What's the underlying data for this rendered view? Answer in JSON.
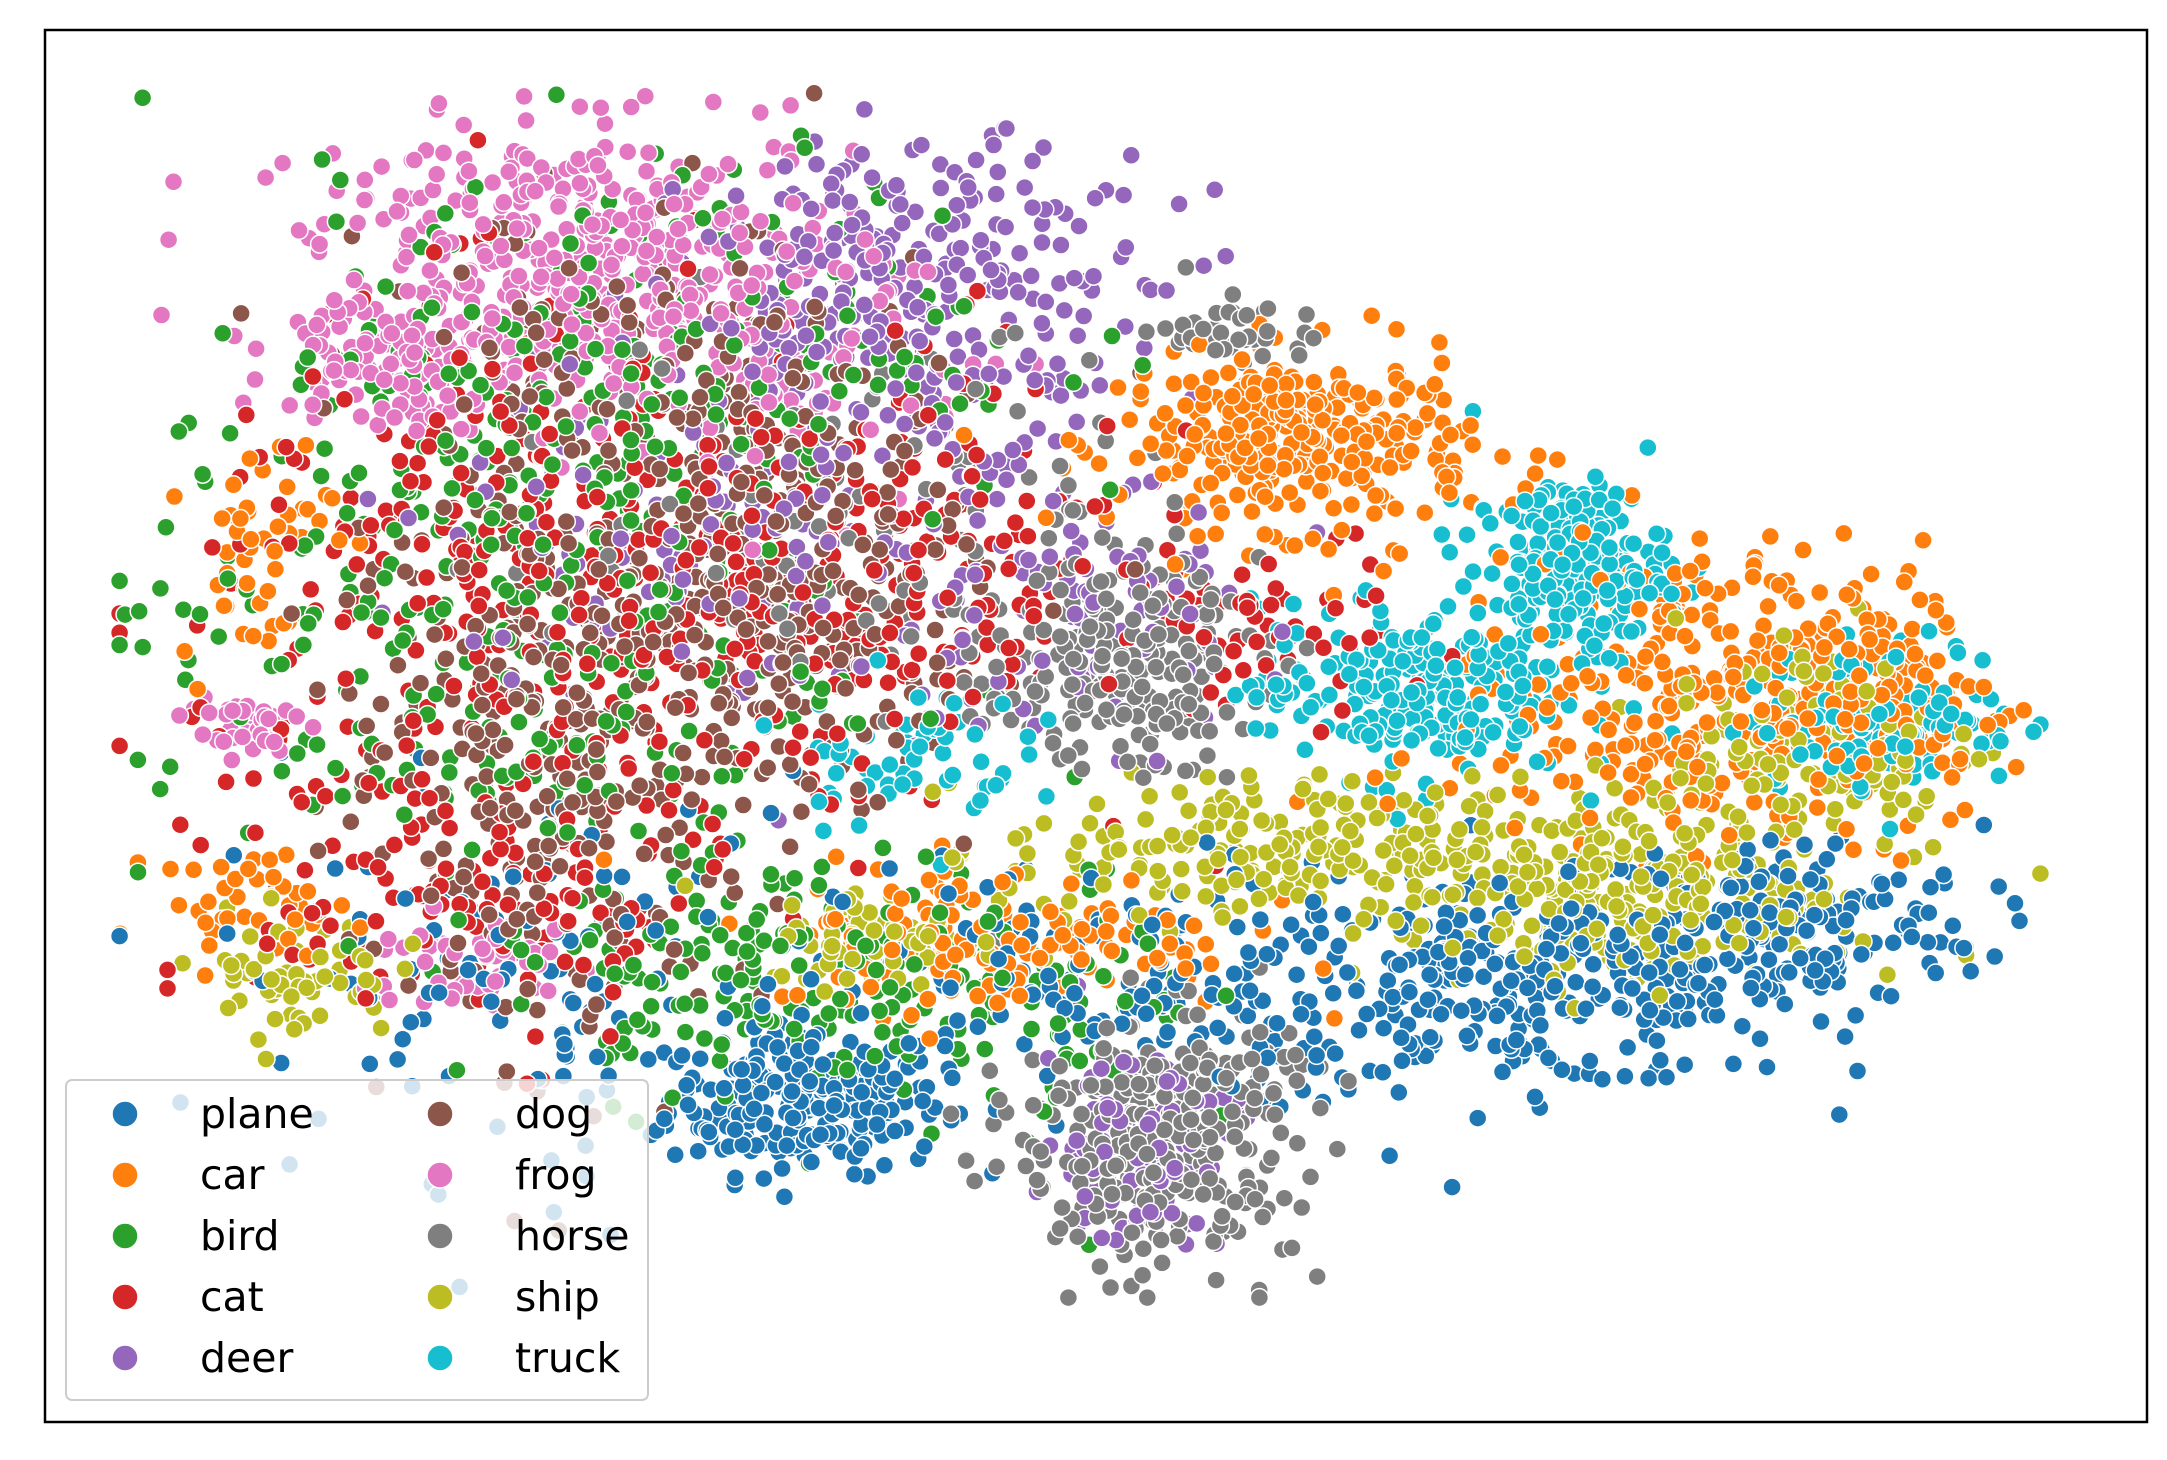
{
  "chart_data": {
    "type": "scatter",
    "title": "",
    "xlabel": "",
    "ylabel": "",
    "xlim": [
      0,
      100
    ],
    "ylim": [
      0,
      100
    ],
    "axis_ticks": false,
    "grid": false,
    "legend_placement": "lower-left",
    "legend_columns": 2,
    "marker_edge_color": "#ffffff",
    "series": [
      {
        "name": "plane",
        "color": "#1f77b4",
        "clusters": [
          {
            "cx": 36,
            "cy": 17,
            "sx": 3.5,
            "sy": 3.0,
            "n": 260
          },
          {
            "cx": 73,
            "cy": 26,
            "sx": 7.0,
            "sy": 4.0,
            "n": 300
          },
          {
            "cx": 86,
            "cy": 31,
            "sx": 5.0,
            "sy": 4.0,
            "n": 180
          },
          {
            "cx": 52,
            "cy": 26,
            "sx": 7.0,
            "sy": 5.0,
            "n": 160
          },
          {
            "cx": 22,
            "cy": 27,
            "sx": 8.0,
            "sy": 8.0,
            "n": 120
          }
        ]
      },
      {
        "name": "car",
        "color": "#ff7f0e",
        "clusters": [
          {
            "cx": 61,
            "cy": 70,
            "sx": 4.5,
            "sy": 3.5,
            "n": 320
          },
          {
            "cx": 81,
            "cy": 50,
            "sx": 6.0,
            "sy": 6.0,
            "n": 320
          },
          {
            "cx": 91,
            "cy": 49,
            "sx": 3.0,
            "sy": 5.0,
            "n": 120
          },
          {
            "cx": 46,
            "cy": 30,
            "sx": 6.0,
            "sy": 3.0,
            "n": 140
          },
          {
            "cx": 8,
            "cy": 62,
            "sx": 2.0,
            "sy": 5.0,
            "n": 50
          },
          {
            "cx": 8,
            "cy": 33,
            "sx": 2.5,
            "sy": 2.0,
            "n": 40
          }
        ]
      },
      {
        "name": "bird",
        "color": "#2ca02c",
        "clusters": [
          {
            "cx": 20,
            "cy": 55,
            "sx": 9.0,
            "sy": 12.0,
            "n": 320
          },
          {
            "cx": 30,
            "cy": 78,
            "sx": 9.0,
            "sy": 7.0,
            "n": 200
          },
          {
            "cx": 33,
            "cy": 27,
            "sx": 5.0,
            "sy": 5.0,
            "n": 150
          },
          {
            "cx": 48,
            "cy": 24,
            "sx": 4.0,
            "sy": 6.0,
            "n": 80
          }
        ]
      },
      {
        "name": "cat",
        "color": "#d62728",
        "clusters": [
          {
            "cx": 23,
            "cy": 58,
            "sx": 9.0,
            "sy": 11.0,
            "n": 340
          },
          {
            "cx": 39,
            "cy": 60,
            "sx": 7.0,
            "sy": 8.0,
            "n": 220
          },
          {
            "cx": 20,
            "cy": 33,
            "sx": 6.0,
            "sy": 6.0,
            "n": 120
          },
          {
            "cx": 58,
            "cy": 55,
            "sx": 4.0,
            "sy": 4.0,
            "n": 60
          }
        ]
      },
      {
        "name": "deer",
        "color": "#9467bd",
        "clusters": [
          {
            "cx": 42,
            "cy": 82,
            "sx": 6.0,
            "sy": 6.0,
            "n": 300
          },
          {
            "cx": 33,
            "cy": 63,
            "sx": 8.0,
            "sy": 8.0,
            "n": 150
          },
          {
            "cx": 53,
            "cy": 14,
            "sx": 2.5,
            "sy": 4.0,
            "n": 110
          },
          {
            "cx": 50,
            "cy": 56,
            "sx": 5.0,
            "sy": 5.0,
            "n": 80
          }
        ]
      },
      {
        "name": "dog",
        "color": "#8c564b",
        "clusters": [
          {
            "cx": 23,
            "cy": 47,
            "sx": 5.5,
            "sy": 12.0,
            "n": 360
          },
          {
            "cx": 35,
            "cy": 57,
            "sx": 5.0,
            "sy": 8.0,
            "n": 300
          },
          {
            "cx": 28,
            "cy": 75,
            "sx": 7.0,
            "sy": 7.0,
            "n": 150
          }
        ]
      },
      {
        "name": "frog",
        "color": "#e377c2",
        "clusters": [
          {
            "cx": 25,
            "cy": 85,
            "sx": 7.0,
            "sy": 5.0,
            "n": 420
          },
          {
            "cx": 15,
            "cy": 77,
            "sx": 3.0,
            "sy": 3.0,
            "n": 120
          },
          {
            "cx": 7,
            "cy": 47,
            "sx": 1.5,
            "sy": 1.5,
            "n": 40
          },
          {
            "cx": 19,
            "cy": 28,
            "sx": 3.0,
            "sy": 2.0,
            "n": 50
          },
          {
            "cx": 35,
            "cy": 75,
            "sx": 5.0,
            "sy": 5.0,
            "n": 80
          }
        ]
      },
      {
        "name": "horse",
        "color": "#7f7f7f",
        "clusters": [
          {
            "cx": 54,
            "cy": 14,
            "sx": 3.5,
            "sy": 5.0,
            "n": 360
          },
          {
            "cx": 52,
            "cy": 52,
            "sx": 3.5,
            "sy": 4.0,
            "n": 220
          },
          {
            "cx": 58,
            "cy": 79,
            "sx": 2.0,
            "sy": 1.5,
            "n": 40
          },
          {
            "cx": 40,
            "cy": 65,
            "sx": 8.0,
            "sy": 8.0,
            "n": 100
          }
        ]
      },
      {
        "name": "ship",
        "color": "#bcbd22",
        "clusters": [
          {
            "cx": 77,
            "cy": 34,
            "sx": 6.0,
            "sy": 4.0,
            "n": 320
          },
          {
            "cx": 58,
            "cy": 37,
            "sx": 6.0,
            "sy": 3.0,
            "n": 180
          },
          {
            "cx": 88,
            "cy": 46,
            "sx": 4.0,
            "sy": 5.0,
            "n": 140
          },
          {
            "cx": 40,
            "cy": 30,
            "sx": 3.0,
            "sy": 2.0,
            "n": 70
          },
          {
            "cx": 10,
            "cy": 27,
            "sx": 2.5,
            "sy": 2.5,
            "n": 60
          }
        ]
      },
      {
        "name": "truck",
        "color": "#17becf",
        "clusters": [
          {
            "cx": 75,
            "cy": 60,
            "sx": 2.5,
            "sy": 3.5,
            "n": 200
          },
          {
            "cx": 67,
            "cy": 50,
            "sx": 4.0,
            "sy": 3.5,
            "n": 240
          },
          {
            "cx": 91,
            "cy": 48,
            "sx": 3.5,
            "sy": 3.0,
            "n": 160
          },
          {
            "cx": 41,
            "cy": 45,
            "sx": 3.0,
            "sy": 3.0,
            "n": 60
          }
        ]
      }
    ]
  }
}
